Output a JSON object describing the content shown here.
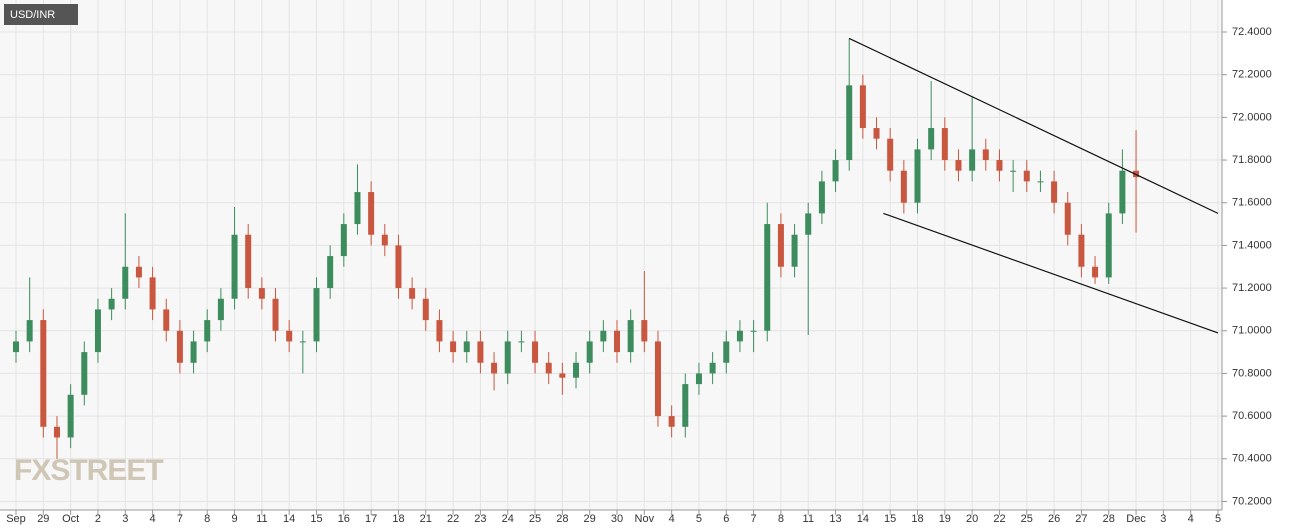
{
  "chart_data": {
    "type": "candlestick",
    "title": "USD/INR",
    "watermark": "FXSTREET",
    "up_color": "#3d8c5e",
    "down_color": "#c9563e",
    "grid": true,
    "categories": [
      "Sep",
      null,
      "29",
      null,
      "Oct",
      null,
      "2",
      null,
      "3",
      null,
      "4",
      null,
      "7",
      null,
      "8",
      null,
      "9",
      null,
      "11",
      null,
      "14",
      null,
      "15",
      null,
      "16",
      null,
      "17",
      null,
      "18",
      null,
      "21",
      null,
      "22",
      null,
      "23",
      null,
      "24",
      null,
      "25",
      null,
      "28",
      null,
      "29",
      null,
      "30",
      null,
      "Nov",
      null,
      "4",
      null,
      "5",
      null,
      "6",
      null,
      "7",
      null,
      "8",
      null,
      "11",
      null,
      "13",
      null,
      "14",
      null,
      "15",
      null,
      "18",
      null,
      "19",
      null,
      "20",
      null,
      "22",
      null,
      "25",
      null,
      "26",
      null,
      "27",
      null,
      "28",
      null,
      "Dec",
      null,
      "3",
      null,
      "4",
      null,
      "5"
    ],
    "open": [
      70.9,
      70.95,
      71.05,
      70.55,
      70.5,
      70.7,
      70.9,
      71.1,
      71.15,
      71.3,
      71.25,
      71.1,
      71.0,
      70.85,
      70.95,
      71.05,
      71.15,
      71.45,
      71.2,
      71.15,
      71.0,
      70.95,
      70.95,
      71.2,
      71.35,
      71.5,
      71.65,
      71.45,
      71.4,
      71.2,
      71.15,
      71.05,
      70.95,
      70.9,
      70.95,
      70.85,
      70.8,
      70.95,
      70.95,
      70.85,
      70.8,
      70.78,
      70.85,
      70.95,
      71.0,
      70.9,
      71.05,
      70.95,
      70.6,
      70.55,
      70.75,
      70.8,
      70.85,
      70.95,
      71.0,
      71.0,
      71.5,
      71.3,
      71.45,
      71.55,
      71.7,
      71.8,
      72.15,
      71.95,
      71.9,
      71.75,
      71.6,
      71.85,
      71.95,
      71.8,
      71.75,
      71.85,
      71.8,
      71.75,
      71.75,
      71.7,
      71.7,
      71.6,
      71.45,
      71.3,
      71.25,
      71.55,
      71.75,
      null,
      null,
      null,
      null,
      null,
      null
    ],
    "high": [
      71.0,
      71.25,
      71.1,
      70.6,
      70.75,
      70.95,
      71.15,
      71.2,
      71.55,
      71.35,
      71.3,
      71.15,
      71.05,
      71.0,
      71.1,
      71.2,
      71.58,
      71.5,
      71.25,
      71.2,
      71.05,
      71.0,
      71.25,
      71.4,
      71.55,
      71.78,
      71.7,
      71.5,
      71.45,
      71.25,
      71.2,
      71.1,
      71.0,
      71.0,
      71.0,
      70.9,
      71.0,
      71.0,
      71.0,
      70.9,
      70.85,
      70.9,
      71.0,
      71.05,
      71.05,
      71.1,
      71.28,
      71.0,
      70.65,
      70.8,
      70.85,
      70.9,
      71.0,
      71.05,
      71.05,
      71.6,
      71.55,
      71.5,
      71.6,
      71.75,
      71.85,
      72.37,
      72.2,
      72.0,
      71.95,
      71.8,
      71.9,
      72.17,
      72.0,
      71.85,
      72.1,
      71.9,
      71.85,
      71.8,
      71.8,
      71.75,
      71.75,
      71.65,
      71.5,
      71.35,
      71.6,
      71.85,
      71.94,
      null,
      null,
      null,
      null,
      null,
      null
    ],
    "low": [
      70.85,
      70.9,
      70.5,
      70.4,
      70.45,
      70.65,
      70.85,
      71.05,
      71.1,
      71.2,
      71.05,
      70.95,
      70.8,
      70.8,
      70.9,
      71.0,
      71.1,
      71.15,
      71.1,
      70.95,
      70.9,
      70.8,
      70.9,
      71.15,
      71.3,
      71.45,
      71.4,
      71.35,
      71.15,
      71.1,
      71.0,
      70.9,
      70.85,
      70.85,
      70.8,
      70.72,
      70.75,
      70.9,
      70.8,
      70.75,
      70.7,
      70.73,
      70.8,
      70.9,
      70.85,
      70.85,
      70.9,
      70.55,
      70.5,
      70.5,
      70.7,
      70.75,
      70.8,
      70.9,
      70.9,
      70.95,
      71.25,
      71.25,
      70.98,
      71.5,
      71.65,
      71.75,
      71.9,
      71.85,
      71.7,
      71.55,
      71.55,
      71.8,
      71.75,
      71.7,
      71.7,
      71.75,
      71.7,
      71.65,
      71.65,
      71.65,
      71.55,
      71.4,
      71.25,
      71.22,
      71.22,
      71.5,
      71.46,
      null,
      null,
      null,
      null,
      null,
      null
    ],
    "close": [
      70.95,
      71.05,
      70.55,
      70.5,
      70.7,
      70.9,
      71.1,
      71.15,
      71.3,
      71.25,
      71.1,
      71.0,
      70.85,
      70.95,
      71.05,
      71.15,
      71.45,
      71.2,
      71.15,
      71.0,
      70.95,
      70.95,
      71.2,
      71.35,
      71.5,
      71.65,
      71.45,
      71.4,
      71.2,
      71.15,
      71.05,
      70.95,
      70.9,
      70.95,
      70.85,
      70.8,
      70.95,
      70.95,
      70.85,
      70.8,
      70.78,
      70.85,
      70.95,
      71.0,
      70.9,
      71.05,
      70.95,
      70.6,
      70.55,
      70.75,
      70.8,
      70.85,
      70.95,
      71.0,
      71.0,
      71.5,
      71.3,
      71.45,
      71.55,
      71.7,
      71.8,
      72.15,
      71.95,
      71.9,
      71.75,
      71.6,
      71.85,
      71.95,
      71.8,
      71.75,
      71.85,
      71.8,
      71.75,
      71.75,
      71.7,
      71.7,
      71.6,
      71.45,
      71.3,
      71.25,
      71.55,
      71.75,
      71.72,
      null,
      null,
      null,
      null,
      null,
      null
    ],
    "trendlines": [
      {
        "x": [
          61,
          88
        ],
        "y": [
          72.37,
          71.55
        ]
      },
      {
        "x": [
          63.5,
          88
        ],
        "y": [
          71.55,
          70.99
        ]
      }
    ],
    "ylim": [
      70.16,
      72.55
    ],
    "yticks": [
      {
        "value": 70.2,
        "label": "70.2000"
      },
      {
        "value": 70.4,
        "label": "70.4000"
      },
      {
        "value": 70.6,
        "label": "70.6000"
      },
      {
        "value": 70.8,
        "label": "70.8000"
      },
      {
        "value": 71.0,
        "label": "71.0000"
      },
      {
        "value": 71.2,
        "label": "71.2000"
      },
      {
        "value": 71.4,
        "label": "71.4000"
      },
      {
        "value": 71.6,
        "label": "71.6000"
      },
      {
        "value": 71.8,
        "label": "71.8000"
      },
      {
        "value": 72.0,
        "label": "72.0000"
      },
      {
        "value": 72.2,
        "label": "72.2000"
      },
      {
        "value": 72.4,
        "label": "72.4000"
      }
    ]
  }
}
